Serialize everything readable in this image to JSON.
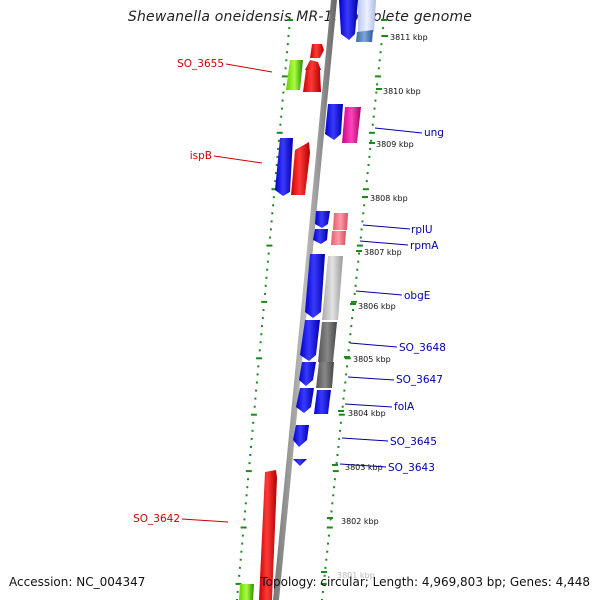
{
  "title": "Shewanella oneidensis MR-1, complete genome",
  "accession_text": "Accession: NC_004347",
  "summary_text": "Topology: circular; Length: 4,969,803 bp; Genes: 4,448",
  "colors": {
    "backbone": "#888888",
    "ticks": "#1a8a1a",
    "forward_label": "#cc0000",
    "reverse_label": "#0000aa"
  },
  "scale_ticks": [
    "3811 kbp",
    "3810 kbp",
    "3809 kbp",
    "3808 kbp",
    "3807 kbp",
    "3806 kbp",
    "3805 kbp",
    "3804 kbp",
    "3803 kbp",
    "3802 kbp",
    "3801 kbp"
  ],
  "gene_labels": {
    "left": [
      "SO_3655",
      "ispB",
      "SO_3642"
    ],
    "right": [
      "ung",
      "rplU",
      "rpmA",
      "obgE",
      "SO_3648",
      "SO_3647",
      "folA",
      "SO_3645",
      "SO_3643"
    ]
  }
}
